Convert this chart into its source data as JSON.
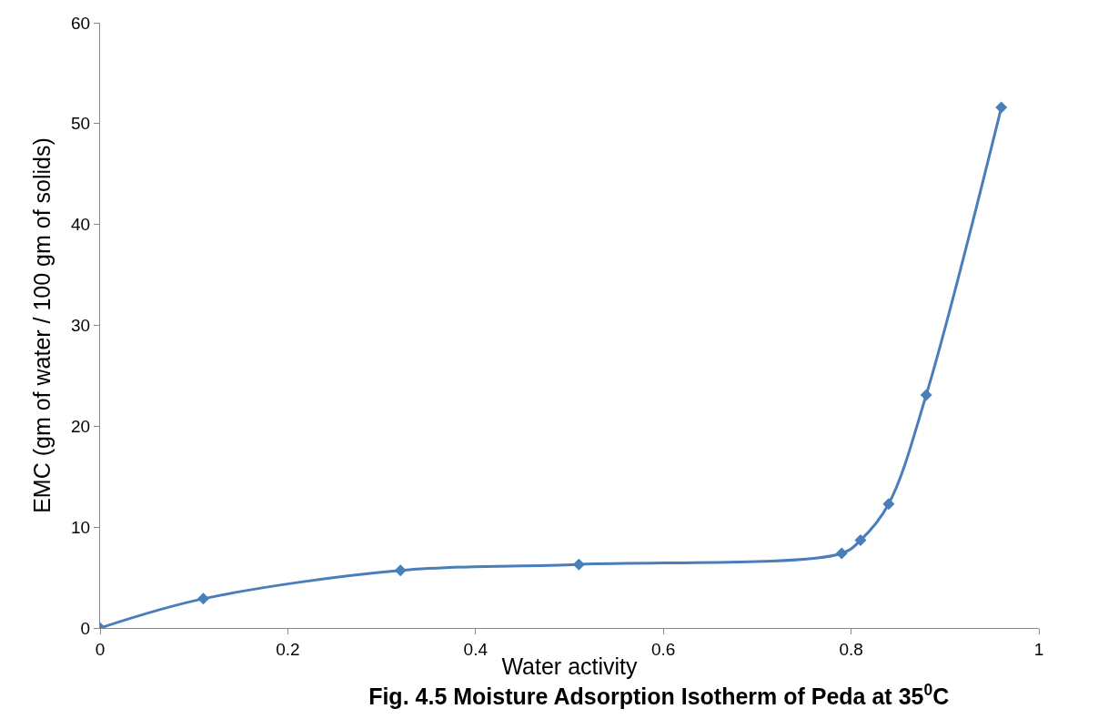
{
  "chart_data": {
    "type": "line",
    "title": "Fig. 4.5 Moisture Adsorption Isotherm of Peda at 35$^{0}$C",
    "xlabel": "Water activity",
    "ylabel": "EMC (gm of water / 100 gm of solids)",
    "x": [
      0,
      0.11,
      0.32,
      0.51,
      0.79,
      0.81,
      0.84,
      0.88,
      0.96
    ],
    "series": [
      {
        "color": "#4a7ebb",
        "values": [
          0,
          2.9,
          5.7,
          6.3,
          7.4,
          8.7,
          12.3,
          23.1,
          51.6
        ]
      }
    ],
    "xlim": [
      0,
      1
    ],
    "xticks": [
      0,
      0.2,
      0.4,
      0.6,
      0.8,
      1
    ],
    "ylim": [
      0,
      60
    ],
    "yticks": [
      0,
      10,
      20,
      30,
      40,
      50,
      60
    ],
    "legend": false,
    "marker": "diamond",
    "line_style": "solid"
  }
}
